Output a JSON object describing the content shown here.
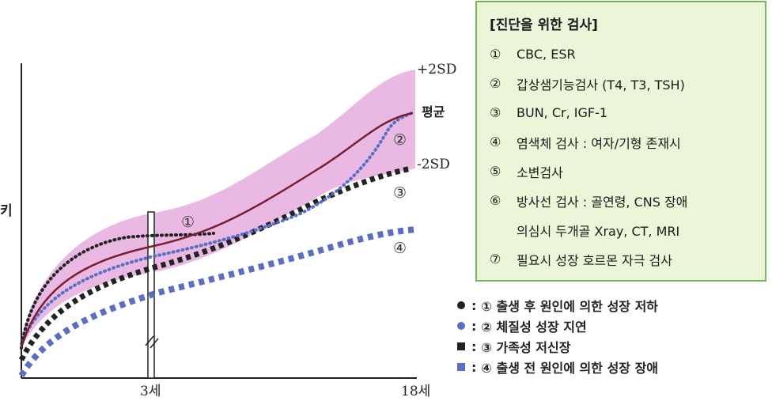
{
  "chart_data": {
    "type": "line",
    "ylabel": "키",
    "x_ticks": [
      "3세",
      "18세"
    ],
    "band": {
      "upper_label": "+2SD",
      "mean_label": "평균",
      "lower_label": "-2SD",
      "color": "#e9b9e3"
    },
    "curve_labels": [
      "①",
      "②",
      "③",
      "④"
    ],
    "series": [
      {
        "name": "① : ① 출생 후 원인에 의한 성장 저하",
        "style": "dotted",
        "color": "#222222"
      },
      {
        "name": "② : ② 체질성 성장 지연",
        "style": "dotted",
        "color": "#5a6fc0"
      },
      {
        "name": "③ : ③ 가족성 저신장",
        "style": "dashed",
        "color": "#222222"
      },
      {
        "name": "④ : ④ 출생 전 원인에 의한 성장 장애",
        "style": "dashed",
        "color": "#5a6fc0"
      }
    ],
    "mean_color": "#7a1e2e"
  },
  "info_box": {
    "title": "[진단을 위한 검사]",
    "items": [
      {
        "num": "①",
        "text": "CBC, ESR"
      },
      {
        "num": "②",
        "text": "갑상샘기능검사 (T4, T3, TSH)"
      },
      {
        "num": "③",
        "text": "BUN, Cr, IGF-1"
      },
      {
        "num": "④",
        "text": "염색체 검사 : 여자/기형 존재시"
      },
      {
        "num": "⑤",
        "text": "소변검사"
      },
      {
        "num": "⑥",
        "text": "방사선 검사 : 골연령, CNS 장애"
      },
      {
        "num": "",
        "text": "의심시 두개골 Xray, CT, MRI"
      },
      {
        "num": "⑦",
        "text": "필요시 성장 호르몬 자극 검사"
      }
    ],
    "bg_color": "#ebf5d8",
    "border_color": "#76b65a"
  },
  "legend": [
    {
      "colon": ":",
      "text": "① 출생 후 원인에 의한 성장 저하",
      "color": "#222222",
      "shape": "circle"
    },
    {
      "colon": ":",
      "text": "② 체질성 성장 지연",
      "color": "#5a6fc0",
      "shape": "circle"
    },
    {
      "colon": ":",
      "text": "③ 가족성 저신장",
      "color": "#222222",
      "shape": "square"
    },
    {
      "colon": ":",
      "text": "④ 출생 전 원인에 의한 성장 장애",
      "color": "#5a6fc0",
      "shape": "square"
    }
  ]
}
